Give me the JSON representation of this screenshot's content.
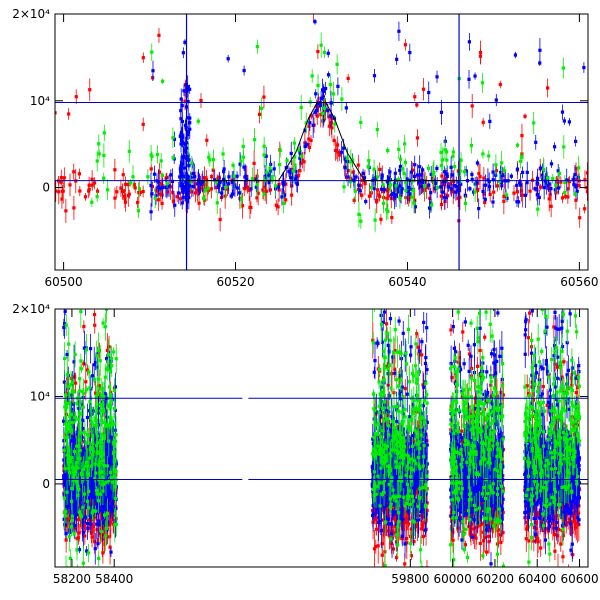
{
  "chart_data": [
    {
      "type": "scatter",
      "panel": "top",
      "xlim": [
        60499,
        60561
      ],
      "ylim": [
        -9500,
        20000
      ],
      "xticks": [
        60500,
        60520,
        60540,
        60560
      ],
      "xtick_labels": [
        "60500",
        "60520",
        "60540",
        "60560"
      ],
      "yticks": [
        0,
        10000,
        20000
      ],
      "ytick_labels": [
        "0",
        "10⁴",
        "2×10⁴"
      ],
      "grid": false,
      "colors": {
        "red": "#ff0000",
        "green": "#00ee00",
        "blue": "#0000ff",
        "lines": "#0000cc"
      },
      "hlines": [
        800,
        9800
      ],
      "vlines": [
        60514.3,
        60546.0
      ],
      "model_curve": {
        "x": [
          60514.3,
          60525,
          60527,
          60528.5,
          60529.5,
          60530.5,
          60531.5,
          60533,
          60535,
          60546
        ],
        "y": [
          800,
          800,
          4000,
          8000,
          9800,
          9800,
          8000,
          4000,
          800,
          800
        ]
      },
      "series": [
        {
          "color": "red",
          "baseline_x_range": [
            60499,
            60561
          ],
          "baseline_y_center": -200,
          "baseline_y_spread": 900
        },
        {
          "color": "blue",
          "baseline_x_range": [
            60510,
            60561
          ],
          "baseline_y_center": 600,
          "baseline_y_spread": 1100
        },
        {
          "color": "green",
          "baseline_x_range": [
            60503,
            60560
          ],
          "baseline_y_center": 1500,
          "baseline_y_spread": 2500
        }
      ],
      "peak": {
        "x_center": 60530,
        "width_days": 3.2,
        "amplitude": 9500
      }
    },
    {
      "type": "scatter",
      "panel": "bottom",
      "xlim": [
        58120,
        60640
      ],
      "ylim": [
        -9500,
        20000
      ],
      "xticks": [
        58200,
        58400,
        59800,
        60000,
        60200,
        60400,
        60600
      ],
      "xtick_labels": [
        "58200",
        "58400",
        "59800",
        "60000",
        "60200",
        "60400",
        "60600"
      ],
      "yticks": [
        0,
        10000,
        20000
      ],
      "ytick_labels": [
        "0",
        "10⁴",
        "2×10⁴"
      ],
      "grid": false,
      "colors": {
        "red": "#ff0000",
        "green": "#00ee00",
        "blue": "#0000ff",
        "lines": "#0000cc"
      },
      "hlines": [
        500,
        9800
      ],
      "axis_break": {
        "x_from": 58440,
        "x_to": 59600,
        "note": "gap in time axis"
      },
      "seasons": [
        {
          "x_range": [
            58160,
            58410
          ]
        },
        {
          "x_range": [
            59620,
            59880
          ]
        },
        {
          "x_range": [
            59990,
            60240
          ]
        },
        {
          "x_range": [
            60340,
            60600
          ]
        }
      ],
      "series": [
        {
          "color": "red",
          "baseline_y_center": -800,
          "baseline_y_spread": 2500
        },
        {
          "color": "blue",
          "baseline_y_center": 1200,
          "baseline_y_spread": 2600
        },
        {
          "color": "green",
          "baseline_y_center": 4000,
          "baseline_y_spread": 5000
        }
      ]
    }
  ]
}
